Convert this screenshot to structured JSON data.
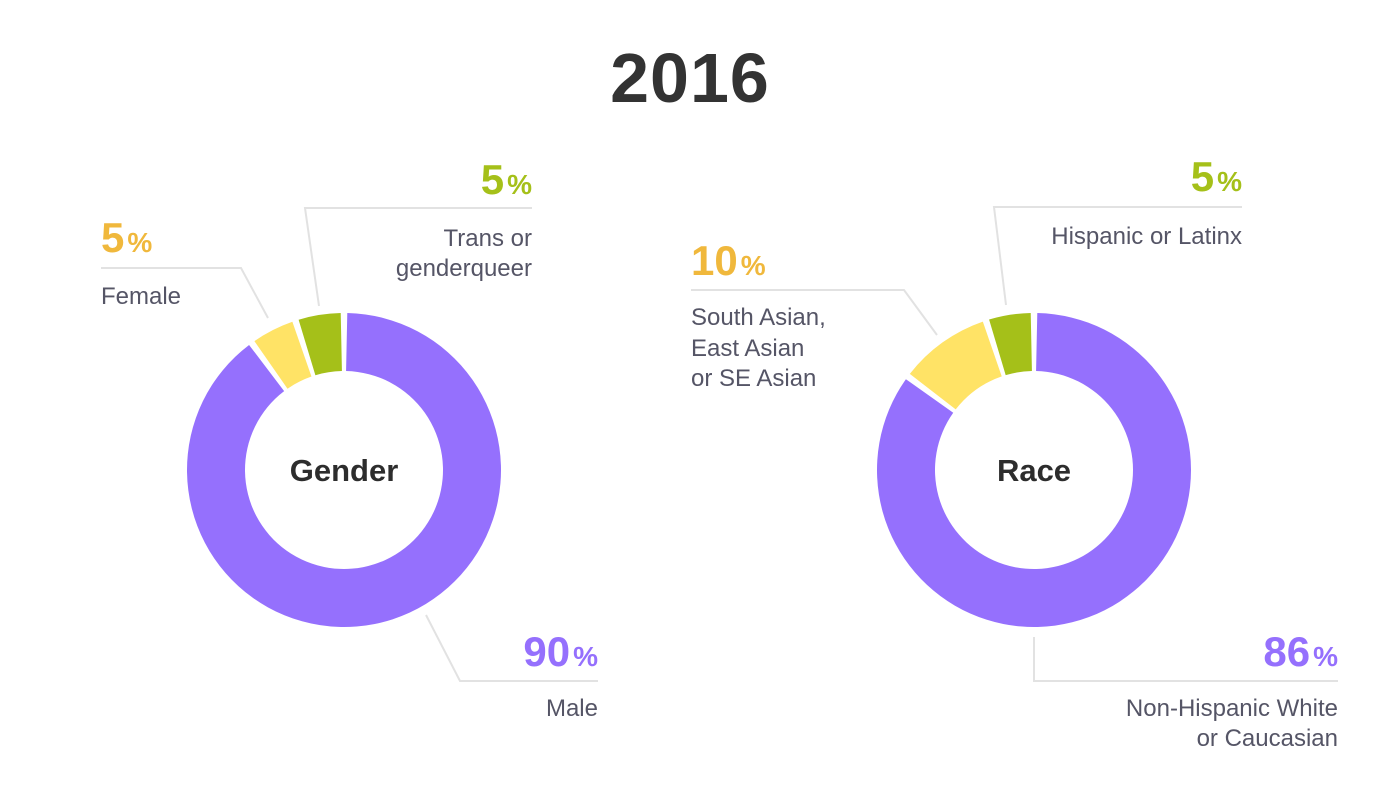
{
  "title": "2016",
  "colors": {
    "purple": "#9570fd",
    "yellow": "#ffe366",
    "green": "#a5c019",
    "yellow_text": "#f0b83c",
    "green_text": "#a5c019",
    "purple_text": "#9570fd",
    "label_text": "#555566",
    "leader_line": "#e2e2e2"
  },
  "chart_data": [
    {
      "type": "pie",
      "style": "donut",
      "center_label": "Gender",
      "slices": [
        {
          "label": "Trans or genderqueer",
          "lines": [
            "Trans or",
            "genderqueer"
          ],
          "value": 5,
          "display": "5",
          "color": "#a5c019",
          "text_color": "#a5c019"
        },
        {
          "label": "Female",
          "lines": [
            "Female"
          ],
          "value": 5,
          "display": "5",
          "color": "#ffe366",
          "text_color": "#f0b83c"
        },
        {
          "label": "Male",
          "lines": [
            "Male"
          ],
          "value": 90,
          "display": "90",
          "color": "#9570fd",
          "text_color": "#9570fd"
        }
      ]
    },
    {
      "type": "pie",
      "style": "donut",
      "center_label": "Race",
      "slices": [
        {
          "label": "Hispanic or Latinx",
          "lines": [
            "Hispanic or Latinx"
          ],
          "value": 5,
          "display": "5",
          "color": "#a5c019",
          "text_color": "#a5c019"
        },
        {
          "label": "South Asian, East Asian or SE Asian",
          "lines": [
            "South Asian,",
            "East Asian",
            "or SE Asian"
          ],
          "value": 10,
          "display": "10",
          "color": "#ffe366",
          "text_color": "#f0b83c"
        },
        {
          "label": "Non-Hispanic White or Caucasian",
          "lines": [
            "Non-Hispanic White",
            "or Caucasian"
          ],
          "value": 86,
          "display": "86",
          "color": "#9570fd",
          "text_color": "#9570fd"
        }
      ]
    }
  ]
}
